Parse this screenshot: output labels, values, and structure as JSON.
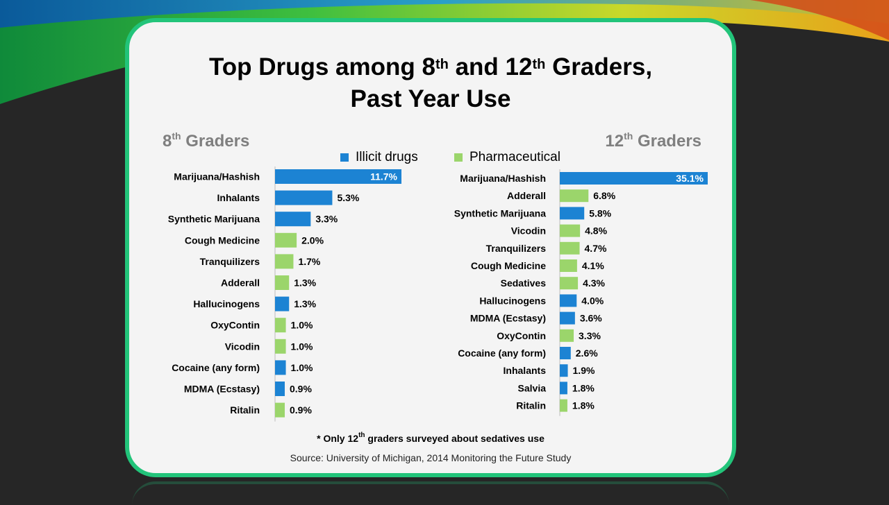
{
  "colors": {
    "illicit": "#1c83d3",
    "pharmaceutical": "#9bd56b",
    "frame": "#22c47a",
    "heading": "#7f7f7f"
  },
  "title": {
    "line1_a": "Top Drugs among  8",
    "sup1": "th",
    "line1_b": " and 12",
    "sup2": "th",
    "line1_c": " Graders,",
    "line2": "Past Year Use"
  },
  "panels": {
    "left_heading": "8",
    "left_heading_sup": "th",
    "left_heading_rest": " Graders",
    "right_heading": "12",
    "right_heading_sup": "th",
    "right_heading_rest": " Graders"
  },
  "legend": {
    "illicit": "Illicit drugs",
    "pharmaceutical": "Pharmaceutical"
  },
  "footnote": {
    "a": "* Only 12",
    "sup": "th",
    "b": " graders surveyed about sedatives use"
  },
  "source": "Source: University of Michigan, 2014 Monitoring the Future Study",
  "chart_data": [
    {
      "type": "bar",
      "orientation": "horizontal",
      "title": "8th Graders",
      "unit": "%",
      "categories": [
        "Marijuana/Hashish",
        "Inhalants",
        "Synthetic Marijuana",
        "Cough Medicine",
        "Tranquilizers",
        "Adderall",
        "Hallucinogens",
        "OxyContin",
        "Vicodin",
        "Cocaine (any form)",
        "MDMA (Ecstasy)",
        "Ritalin"
      ],
      "values": [
        11.7,
        5.3,
        3.3,
        2.0,
        1.7,
        1.3,
        1.3,
        1.0,
        1.0,
        1.0,
        0.9,
        0.9
      ],
      "value_labels": [
        "11.7%",
        "5.3%",
        "3.3%",
        "2.0%",
        "1.7%",
        "1.3%",
        "1.3%",
        "1.0%",
        "1.0%",
        "1.0%",
        "0.9%",
        "0.9%"
      ],
      "category_type": [
        "illicit",
        "illicit",
        "illicit",
        "pharmaceutical",
        "pharmaceutical",
        "pharmaceutical",
        "illicit",
        "pharmaceutical",
        "pharmaceutical",
        "illicit",
        "illicit",
        "pharmaceutical"
      ],
      "xlim": [
        0,
        11.7
      ]
    },
    {
      "type": "bar",
      "orientation": "horizontal",
      "title": "12th Graders",
      "unit": "%",
      "categories": [
        "Marijuana/Hashish",
        "Adderall",
        "Synthetic Marijuana",
        "Vicodin",
        "Tranquilizers",
        "Cough Medicine",
        "Sedatives",
        "Hallucinogens",
        "MDMA (Ecstasy)",
        "OxyContin",
        "Cocaine (any form)",
        "Inhalants",
        "Salvia",
        "Ritalin"
      ],
      "values": [
        35.1,
        6.8,
        5.8,
        4.8,
        4.7,
        4.1,
        4.3,
        4.0,
        3.6,
        3.3,
        2.6,
        1.9,
        1.8,
        1.8
      ],
      "value_labels": [
        "35.1%",
        "6.8%",
        "5.8%",
        "4.8%",
        "4.7%",
        "4.1%",
        "4.3%",
        "4.0%",
        "3.6%",
        "3.3%",
        "2.6%",
        "1.9%",
        "1.8%",
        "1.8%"
      ],
      "category_type": [
        "illicit",
        "pharmaceutical",
        "illicit",
        "pharmaceutical",
        "pharmaceutical",
        "pharmaceutical",
        "pharmaceutical",
        "illicit",
        "illicit",
        "pharmaceutical",
        "illicit",
        "illicit",
        "illicit",
        "pharmaceutical"
      ],
      "xlim": [
        0,
        35.1
      ]
    }
  ]
}
